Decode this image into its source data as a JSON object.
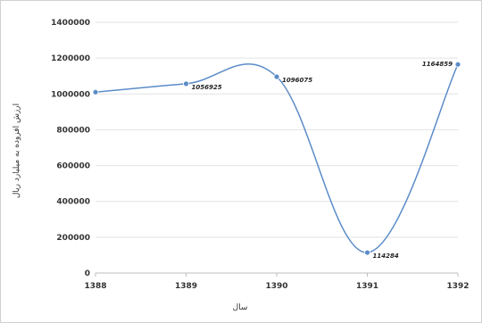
{
  "chart_data": {
    "type": "line",
    "title": "",
    "xlabel": "سال",
    "ylabel": "ارزش افزوده به میلیارد ریال",
    "x": [
      "1388",
      "1389",
      "1390",
      "1391",
      "1392"
    ],
    "series": [
      {
        "values": [
          1010000,
          1056925,
          1096075,
          114284,
          1164859
        ],
        "data_labels": [
          "",
          "1056925",
          "1096075",
          "114284",
          "1164859"
        ],
        "color": "#5b8cc8",
        "smooth": true
      }
    ],
    "ylim": [
      0,
      1400000
    ],
    "yticks": [
      "0",
      "200000",
      "400000",
      "600000",
      "800000",
      "1000000",
      "1200000",
      "1400000"
    ],
    "grid": true,
    "legend": "none"
  }
}
